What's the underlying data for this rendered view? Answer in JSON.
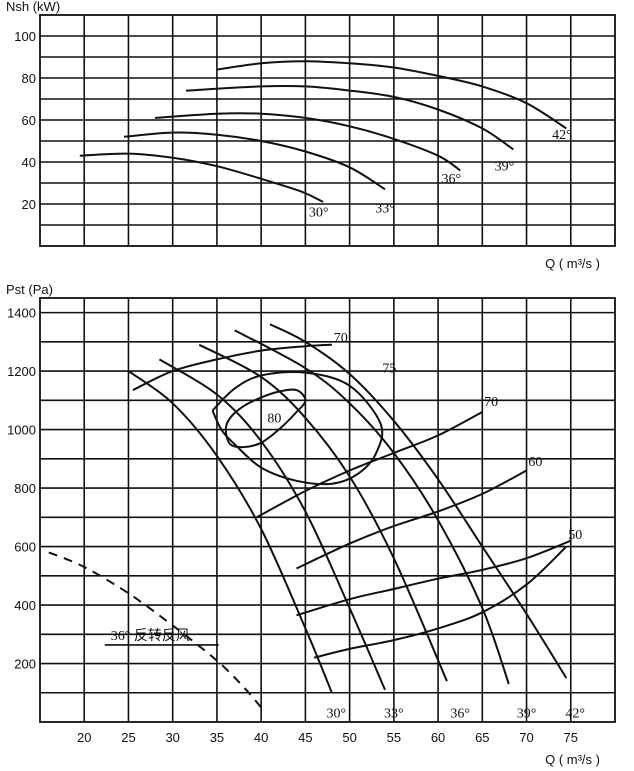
{
  "chart_data": [
    {
      "type": "line",
      "ylabel": "Nsh  (kW)",
      "xlabel": "Q ( m³/s )",
      "ylim": [
        0,
        110
      ],
      "xlim": [
        15,
        80
      ],
      "yticks": [
        20,
        40,
        60,
        80,
        100
      ],
      "grid": true,
      "series": [
        {
          "name": "30°",
          "x": [
            19.5,
            25,
            30,
            35,
            40,
            44.5,
            47
          ],
          "y": [
            43,
            44,
            42,
            38,
            32,
            26,
            21
          ],
          "label_at": [
            46.5,
            14
          ]
        },
        {
          "name": "33°",
          "x": [
            24.5,
            30,
            35,
            40,
            45,
            50,
            54
          ],
          "y": [
            52,
            54,
            53,
            50,
            45,
            37.5,
            27
          ],
          "label_at": [
            54,
            16
          ]
        },
        {
          "name": "36°",
          "x": [
            28,
            35,
            40,
            45,
            50,
            55,
            60,
            62.5
          ],
          "y": [
            61,
            63,
            63,
            61,
            57,
            51,
            43,
            36
          ],
          "label_at": [
            61.5,
            30
          ]
        },
        {
          "name": "39°",
          "x": [
            31.5,
            40,
            45,
            50,
            55,
            60,
            65,
            68.5
          ],
          "y": [
            74,
            76,
            76,
            74,
            71,
            65,
            56,
            46
          ],
          "label_at": [
            67.5,
            36
          ]
        },
        {
          "name": "42°",
          "x": [
            35,
            40,
            45,
            50,
            55,
            60,
            65,
            70,
            74.5
          ],
          "y": [
            84,
            87,
            88,
            87,
            85,
            81,
            76,
            68,
            56
          ],
          "label_at": [
            74,
            51
          ]
        }
      ]
    },
    {
      "type": "line",
      "ylabel": "Pst  (Pa)",
      "xlabel": "Q ( m³/s )",
      "xticks": [
        20,
        25,
        30,
        35,
        40,
        45,
        50,
        55,
        60,
        65,
        70,
        75
      ],
      "yticks": [
        200,
        400,
        600,
        800,
        1000,
        1200,
        1400
      ],
      "xlim": [
        15,
        80
      ],
      "ylim": [
        0,
        1450
      ],
      "grid": true,
      "blade_angle_curves": [
        {
          "name": "30°",
          "x": [
            25,
            30,
            35,
            40,
            45,
            48
          ],
          "y": [
            1200,
            1090,
            910,
            660,
            320,
            100
          ],
          "label_at": [
            48.5,
            15
          ]
        },
        {
          "name": "33°",
          "x": [
            28.5,
            35,
            40,
            45,
            50,
            54
          ],
          "y": [
            1240,
            1120,
            960,
            720,
            390,
            110
          ],
          "label_at": [
            55,
            15
          ]
        },
        {
          "name": "36°",
          "x": [
            33,
            40,
            45,
            50,
            55,
            61
          ],
          "y": [
            1290,
            1180,
            1040,
            840,
            560,
            140
          ],
          "label_at": [
            62.5,
            15
          ]
        },
        {
          "name": "39°",
          "x": [
            37,
            45,
            50,
            55,
            60,
            65,
            68
          ],
          "y": [
            1340,
            1210,
            1090,
            920,
            690,
            390,
            130
          ],
          "label_at": [
            70,
            15
          ]
        },
        {
          "name": "42°",
          "x": [
            41,
            45,
            50,
            55,
            60,
            65,
            70,
            74.5
          ],
          "y": [
            1360,
            1300,
            1190,
            1030,
            830,
            600,
            370,
            150
          ],
          "label_at": [
            75.5,
            15
          ]
        }
      ],
      "efficiency_curves": [
        {
          "label": "80",
          "closed": true,
          "x": [
            36,
            36.5,
            38,
            40,
            42,
            44,
            45,
            44,
            42,
            40,
            38,
            36.5,
            36
          ],
          "y": [
            1000,
            950,
            940,
            955,
            1000,
            1060,
            1100,
            1135,
            1130,
            1110,
            1080,
            1040,
            1000
          ],
          "label_at": [
            41.5,
            1025
          ]
        },
        {
          "label": "75",
          "closed": false,
          "x": [
            34.5,
            37,
            40,
            45,
            50,
            53.5,
            53,
            51,
            48,
            44,
            40,
            37,
            35.5,
            34.5
          ],
          "y": [
            1065,
            1140,
            1185,
            1195,
            1150,
            1020,
            920,
            850,
            815,
            825,
            870,
            950,
            1000,
            1065
          ],
          "label_at": [
            54.5,
            1195
          ]
        },
        {
          "label": "70",
          "closed": false,
          "x": [
            25.5,
            30,
            35,
            40,
            45,
            48
          ],
          "y": [
            1135,
            1200,
            1240,
            1270,
            1285,
            1290
          ],
          "label_at": [
            49,
            1300
          ]
        },
        {
          "label": "70",
          "closed": false,
          "x": [
            39.5,
            45,
            50,
            55,
            60,
            65
          ],
          "y": [
            700,
            790,
            860,
            920,
            980,
            1060
          ],
          "label_at": [
            66,
            1080
          ]
        },
        {
          "label": "60",
          "closed": false,
          "x": [
            44,
            50,
            55,
            60,
            65,
            70
          ],
          "y": [
            525,
            610,
            670,
            720,
            780,
            860
          ],
          "label_at": [
            71,
            875
          ]
        },
        {
          "label": "50",
          "closed": false,
          "x": [
            44,
            50,
            55,
            60,
            65,
            70,
            75
          ],
          "y": [
            365,
            420,
            455,
            490,
            520,
            560,
            620
          ],
          "label_at": [
            75.5,
            625
          ]
        },
        {
          "label": "",
          "closed": false,
          "x": [
            46,
            50,
            55,
            60,
            65,
            70,
            74.5
          ],
          "y": [
            220,
            250,
            280,
            320,
            375,
            470,
            600
          ],
          "label_at": null
        }
      ],
      "reverse_wind": {
        "label": "36°  反转反风",
        "x": [
          16,
          20,
          25,
          30,
          35,
          38,
          40
        ],
        "y": [
          580,
          530,
          440,
          330,
          210,
          120,
          50
        ],
        "label_at": [
          23,
          520
        ]
      }
    }
  ]
}
